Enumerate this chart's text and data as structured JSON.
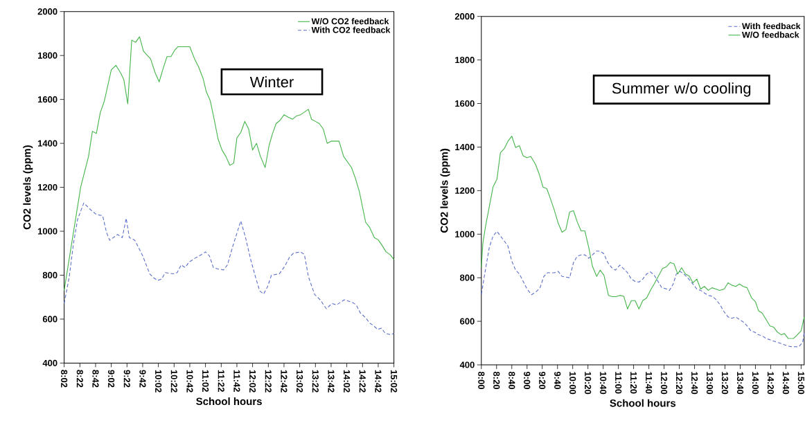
{
  "chart_data": [
    {
      "type": "line",
      "xlabel": "School hours",
      "ylabel": "CO2 levels (ppm)",
      "legend": "top right",
      "annotations": [
        "Winter"
      ],
      "xlim": [
        8.033,
        15.033
      ],
      "ylim": [
        400,
        2000
      ],
      "yticks": [
        400,
        600,
        800,
        1000,
        1200,
        1400,
        1600,
        1800,
        2000
      ],
      "xticks": [
        {
          "value": 8.033,
          "label": "8:02"
        },
        {
          "value": 8.367,
          "label": "8:22"
        },
        {
          "value": 8.7,
          "label": "8:42"
        },
        {
          "value": 9.033,
          "label": "9:02"
        },
        {
          "value": 9.367,
          "label": "9:22"
        },
        {
          "value": 9.7,
          "label": "9:42"
        },
        {
          "value": 10.033,
          "label": "10:02"
        },
        {
          "value": 10.367,
          "label": "10:22"
        },
        {
          "value": 10.7,
          "label": "10:42"
        },
        {
          "value": 11.033,
          "label": "11:02"
        },
        {
          "value": 11.367,
          "label": "11:22"
        },
        {
          "value": 11.7,
          "label": "11:42"
        },
        {
          "value": 12.033,
          "label": "12:02"
        },
        {
          "value": 12.367,
          "label": "12:22"
        },
        {
          "value": 12.7,
          "label": "12:42"
        },
        {
          "value": 13.033,
          "label": "13:02"
        },
        {
          "value": 13.367,
          "label": "13:22"
        },
        {
          "value": 13.7,
          "label": "13:42"
        },
        {
          "value": 14.033,
          "label": "14:02"
        },
        {
          "value": 14.367,
          "label": "14:22"
        },
        {
          "value": 14.7,
          "label": "14:42"
        },
        {
          "value": 15.033,
          "label": "15:02"
        }
      ],
      "series": [
        {
          "name": "W/O CO2 feedback",
          "color": "#44b549",
          "line_style": "solid",
          "x": [
            8.033,
            8.383,
            8.55,
            8.633,
            8.717,
            8.8,
            8.883,
            8.967,
            9.033,
            9.133,
            9.233,
            9.3,
            9.383,
            9.467,
            9.55,
            9.633,
            9.717,
            9.8,
            9.867,
            9.967,
            10.05,
            10.133,
            10.217,
            10.3,
            10.383,
            10.45,
            10.7,
            10.8,
            10.883,
            10.983,
            11.05,
            11.133,
            11.217,
            11.3,
            11.383,
            11.467,
            11.55,
            11.633,
            11.7,
            11.783,
            11.867,
            11.95,
            12.033,
            12.117,
            12.2,
            12.3,
            12.383,
            12.45,
            12.533,
            12.617,
            12.7,
            12.783,
            12.883,
            12.967,
            13.05,
            13.217,
            13.283,
            13.367,
            13.45,
            13.533,
            13.617,
            13.7,
            13.867,
            13.967,
            14.133,
            14.217,
            14.3,
            14.367,
            14.433,
            14.517,
            14.617,
            14.7,
            14.783,
            14.867,
            14.95,
            15.033
          ],
          "values": [
            730,
            1200,
            1340,
            1455,
            1445,
            1540,
            1590,
            1670,
            1735,
            1755,
            1720,
            1690,
            1580,
            1870,
            1860,
            1885,
            1820,
            1800,
            1785,
            1720,
            1680,
            1740,
            1795,
            1795,
            1825,
            1840,
            1840,
            1785,
            1750,
            1695,
            1635,
            1595,
            1510,
            1420,
            1370,
            1340,
            1300,
            1310,
            1425,
            1450,
            1500,
            1465,
            1370,
            1400,
            1340,
            1290,
            1390,
            1440,
            1490,
            1505,
            1530,
            1520,
            1510,
            1525,
            1530,
            1555,
            1510,
            1500,
            1490,
            1465,
            1400,
            1410,
            1410,
            1340,
            1290,
            1240,
            1180,
            1110,
            1041,
            1018,
            971,
            961,
            935,
            906,
            894,
            871
          ]
        },
        {
          "name": "With CO2 feedback",
          "color": "#5b6fc8",
          "line_style": "dashed",
          "x": [
            8.033,
            8.142,
            8.233,
            8.317,
            8.45,
            8.583,
            8.717,
            8.85,
            8.933,
            9.0,
            9.167,
            9.267,
            9.35,
            9.417,
            9.533,
            9.617,
            9.7,
            9.85,
            9.933,
            10.017,
            10.1,
            10.183,
            10.35,
            10.433,
            10.517,
            10.6,
            10.683,
            10.8,
            10.95,
            11.033,
            11.117,
            11.2,
            11.283,
            11.417,
            11.5,
            11.617,
            11.783,
            11.883,
            12.0,
            12.1,
            12.183,
            12.267,
            12.35,
            12.433,
            12.6,
            12.717,
            12.817,
            12.9,
            13.05,
            13.133,
            13.217,
            13.35,
            13.467,
            13.6,
            13.717,
            13.817,
            13.983,
            14.15,
            14.233,
            14.317,
            14.433,
            14.517,
            14.6,
            14.683,
            14.767,
            14.85,
            14.967,
            15.033
          ],
          "values": [
            671,
            794,
            947,
            1053,
            1129,
            1100,
            1076,
            1071,
            994,
            959,
            985,
            971,
            1059,
            971,
            959,
            924,
            888,
            806,
            788,
            776,
            782,
            812,
            806,
            812,
            847,
            835,
            859,
            876,
            894,
            906,
            888,
            835,
            829,
            824,
            847,
            935,
            1047,
            971,
            865,
            788,
            729,
            714,
            747,
            800,
            806,
            841,
            882,
            900,
            906,
            894,
            794,
            712,
            688,
            647,
            671,
            665,
            688,
            676,
            665,
            629,
            606,
            582,
            571,
            553,
            559,
            535,
            529,
            535
          ]
        }
      ]
    },
    {
      "type": "line",
      "xlabel": "School hours",
      "ylabel": "CO2 levels (ppm)",
      "legend": "top right",
      "annotations": [
        "Summer w/o cooling"
      ],
      "xlim": [
        8,
        15.067
      ],
      "ylim": [
        400,
        2000
      ],
      "yticks": [
        400,
        600,
        800,
        1000,
        1200,
        1400,
        1600,
        1800,
        2000
      ],
      "xticks": [
        {
          "value": 8,
          "label": "8:00"
        },
        {
          "value": 8.333,
          "label": "8:20"
        },
        {
          "value": 8.667,
          "label": "8:40"
        },
        {
          "value": 9,
          "label": "9:00"
        },
        {
          "value": 9.333,
          "label": "9:20"
        },
        {
          "value": 9.667,
          "label": "9:40"
        },
        {
          "value": 10,
          "label": "10:00"
        },
        {
          "value": 10.333,
          "label": "10:20"
        },
        {
          "value": 10.667,
          "label": "10:40"
        },
        {
          "value": 11,
          "label": "11:00"
        },
        {
          "value": 11.333,
          "label": "11:20"
        },
        {
          "value": 11.667,
          "label": "11:40"
        },
        {
          "value": 12,
          "label": "12:00"
        },
        {
          "value": 12.333,
          "label": "12:20"
        },
        {
          "value": 12.667,
          "label": "12:40"
        },
        {
          "value": 13,
          "label": "13:00"
        },
        {
          "value": 13.333,
          "label": "13:20"
        },
        {
          "value": 13.667,
          "label": "13:40"
        },
        {
          "value": 14,
          "label": "14:00"
        },
        {
          "value": 14.333,
          "label": "14:20"
        },
        {
          "value": 14.667,
          "label": "14:40"
        },
        {
          "value": 15,
          "label": "15:00"
        }
      ],
      "series": [
        {
          "name": "With feedback",
          "color": "#5b6fc8",
          "line_style": "dashed",
          "x": [
            8.0,
            8.083,
            8.175,
            8.258,
            8.342,
            8.417,
            8.5,
            8.583,
            8.667,
            8.75,
            8.833,
            8.917,
            9.0,
            9.1,
            9.2,
            9.283,
            9.367,
            9.45,
            9.517,
            9.6,
            9.683,
            9.767,
            9.933,
            10.017,
            10.1,
            10.183,
            10.267,
            10.35,
            10.433,
            10.517,
            10.6,
            10.683,
            10.767,
            10.85,
            10.933,
            11.033,
            11.117,
            11.2,
            11.283,
            11.367,
            11.45,
            11.533,
            11.617,
            11.7,
            11.783,
            11.867,
            11.95,
            12.033,
            12.117,
            12.2,
            12.267,
            12.35,
            12.433,
            12.517,
            12.633,
            12.717,
            12.8,
            12.883,
            12.967,
            13.05,
            13.133,
            13.217,
            13.317,
            13.4,
            13.483,
            13.567,
            13.65,
            13.733,
            13.817,
            13.9,
            13.983,
            14.067,
            14.15,
            14.233,
            14.317,
            14.4,
            14.483,
            14.567,
            14.633,
            14.717,
            14.8,
            14.95,
            15.033,
            15.067
          ],
          "values": [
            724,
            829,
            940,
            992,
            1013,
            992,
            969,
            945,
            876,
            835,
            817,
            783,
            748,
            722,
            736,
            753,
            806,
            823,
            823,
            823,
            829,
            806,
            800,
            870,
            899,
            905,
            905,
            889,
            905,
            922,
            922,
            910,
            870,
            847,
            835,
            858,
            841,
            823,
            794,
            783,
            780,
            794,
            817,
            827,
            812,
            783,
            754,
            750,
            742,
            771,
            817,
            829,
            817,
            800,
            771,
            748,
            742,
            730,
            719,
            715,
            701,
            678,
            643,
            620,
            614,
            620,
            608,
            597,
            579,
            556,
            550,
            538,
            533,
            521,
            515,
            509,
            503,
            498,
            492,
            486,
            483,
            483,
            503,
            550
          ]
        },
        {
          "name": "W/O feedback",
          "color": "#44b549",
          "line_style": "solid",
          "x": [
            8.0,
            8.033,
            8.093,
            8.258,
            8.342,
            8.417,
            8.5,
            8.583,
            8.667,
            8.75,
            8.833,
            8.917,
            9.0,
            9.083,
            9.183,
            9.267,
            9.35,
            9.433,
            9.517,
            9.592,
            9.683,
            9.767,
            9.85,
            9.933,
            10.017,
            10.1,
            10.183,
            10.267,
            10.35,
            10.433,
            10.525,
            10.6,
            10.683,
            10.783,
            10.867,
            10.95,
            11.033,
            11.117,
            11.2,
            11.283,
            11.367,
            11.45,
            11.533,
            11.617,
            11.717,
            11.783,
            11.967,
            12.05,
            12.133,
            12.217,
            12.3,
            12.383,
            12.467,
            12.55,
            12.633,
            12.717,
            12.8,
            12.883,
            12.967,
            13.05,
            13.133,
            13.217,
            13.317,
            13.4,
            13.483,
            13.567,
            13.65,
            13.733,
            13.817,
            13.917,
            14.0,
            14.067,
            14.15,
            14.233,
            14.317,
            14.4,
            14.483,
            14.567,
            14.633,
            14.717,
            14.833,
            14.917,
            15.0,
            15.067
          ],
          "values": [
            847,
            957,
            1038,
            1218,
            1253,
            1374,
            1392,
            1427,
            1450,
            1398,
            1406,
            1359,
            1351,
            1357,
            1322,
            1276,
            1216,
            1209,
            1160,
            1114,
            1050,
            1009,
            1021,
            1102,
            1108,
            1056,
            1015,
            1015,
            940,
            852,
            806,
            835,
            812,
            719,
            713,
            713,
            719,
            715,
            657,
            695,
            695,
            657,
            695,
            707,
            748,
            771,
            843,
            850,
            870,
            864,
            817,
            846,
            817,
            808,
            777,
            794,
            748,
            760,
            742,
            754,
            748,
            742,
            748,
            777,
            766,
            760,
            771,
            760,
            754,
            707,
            690,
            649,
            637,
            608,
            579,
            573,
            550,
            538,
            544,
            521,
            521,
            538,
            556,
            620
          ]
        }
      ]
    }
  ]
}
